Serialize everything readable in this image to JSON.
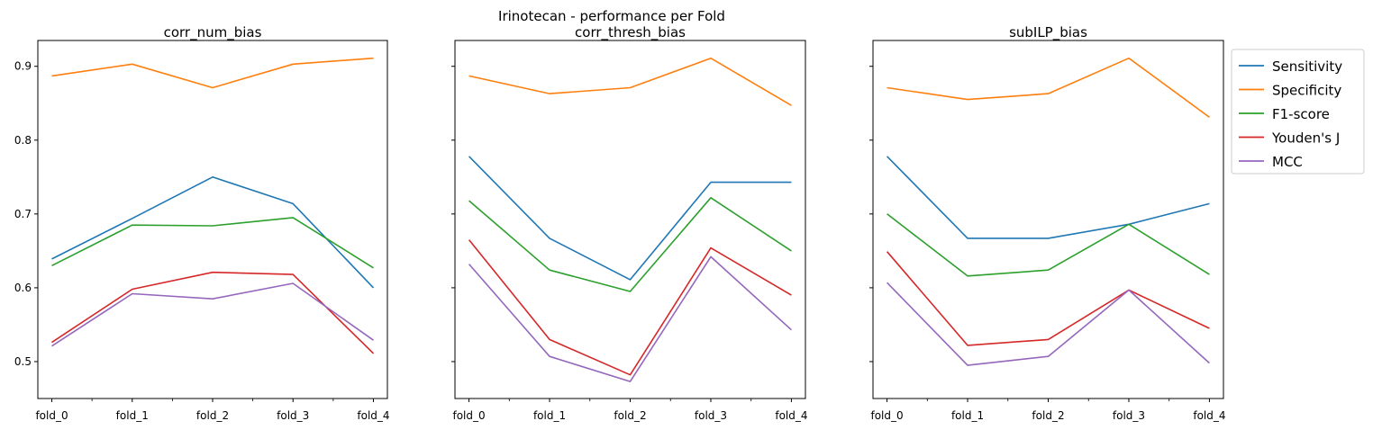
{
  "suptitle": "Irinotecan - performance per Fold",
  "chart_data": [
    {
      "type": "line",
      "title": "corr_num_bias",
      "categories": [
        "fold_0",
        "fold_1",
        "fold_2",
        "fold_3",
        "fold_4"
      ],
      "ylim": [
        0.45,
        0.935
      ],
      "yticks": [
        0.5,
        0.6,
        0.7,
        0.8,
        0.9
      ],
      "show_ytick_labels": true,
      "series": [
        {
          "name": "Sensitivity",
          "values": [
            0.639,
            0.694,
            0.75,
            0.714,
            0.6
          ]
        },
        {
          "name": "Specificity",
          "values": [
            0.887,
            0.903,
            0.871,
            0.903,
            0.911
          ]
        },
        {
          "name": "F1-score",
          "values": [
            0.63,
            0.685,
            0.684,
            0.695,
            0.627
          ]
        },
        {
          "name": "Youden's J",
          "values": [
            0.526,
            0.598,
            0.621,
            0.618,
            0.511
          ]
        },
        {
          "name": "MCC",
          "values": [
            0.521,
            0.592,
            0.585,
            0.606,
            0.529
          ]
        }
      ]
    },
    {
      "type": "line",
      "title": "corr_thresh_bias",
      "categories": [
        "fold_0",
        "fold_1",
        "fold_2",
        "fold_3",
        "fold_4"
      ],
      "ylim": [
        0.45,
        0.935
      ],
      "yticks": [
        0.5,
        0.6,
        0.7,
        0.8,
        0.9
      ],
      "show_ytick_labels": false,
      "series": [
        {
          "name": "Sensitivity",
          "values": [
            0.778,
            0.667,
            0.611,
            0.743,
            0.743
          ]
        },
        {
          "name": "Specificity",
          "values": [
            0.887,
            0.863,
            0.871,
            0.911,
            0.847
          ]
        },
        {
          "name": "F1-score",
          "values": [
            0.718,
            0.624,
            0.595,
            0.722,
            0.65
          ]
        },
        {
          "name": "Youden's J",
          "values": [
            0.665,
            0.53,
            0.482,
            0.654,
            0.59
          ]
        },
        {
          "name": "MCC",
          "values": [
            0.632,
            0.507,
            0.473,
            0.642,
            0.543
          ]
        }
      ]
    },
    {
      "type": "line",
      "title": "subILP_bias",
      "categories": [
        "fold_0",
        "fold_1",
        "fold_2",
        "fold_3",
        "fold_4"
      ],
      "ylim": [
        0.45,
        0.935
      ],
      "yticks": [
        0.5,
        0.6,
        0.7,
        0.8,
        0.9
      ],
      "show_ytick_labels": false,
      "series": [
        {
          "name": "Sensitivity",
          "values": [
            0.778,
            0.667,
            0.667,
            0.686,
            0.714
          ]
        },
        {
          "name": "Specificity",
          "values": [
            0.871,
            0.855,
            0.863,
            0.911,
            0.831
          ]
        },
        {
          "name": "F1-score",
          "values": [
            0.7,
            0.616,
            0.624,
            0.686,
            0.618
          ]
        },
        {
          "name": "Youden's J",
          "values": [
            0.649,
            0.522,
            0.53,
            0.597,
            0.545
          ]
        },
        {
          "name": "MCC",
          "values": [
            0.607,
            0.495,
            0.507,
            0.597,
            0.498
          ]
        }
      ]
    }
  ],
  "colors": [
    "#1f77b4",
    "#ff7f0e",
    "#2ca02c",
    "#d62728",
    "#9467bd"
  ],
  "legend": {
    "placement": "outside-right",
    "entries": [
      "Sensitivity",
      "Specificity",
      "F1-score",
      "Youden's J",
      "MCC"
    ]
  }
}
